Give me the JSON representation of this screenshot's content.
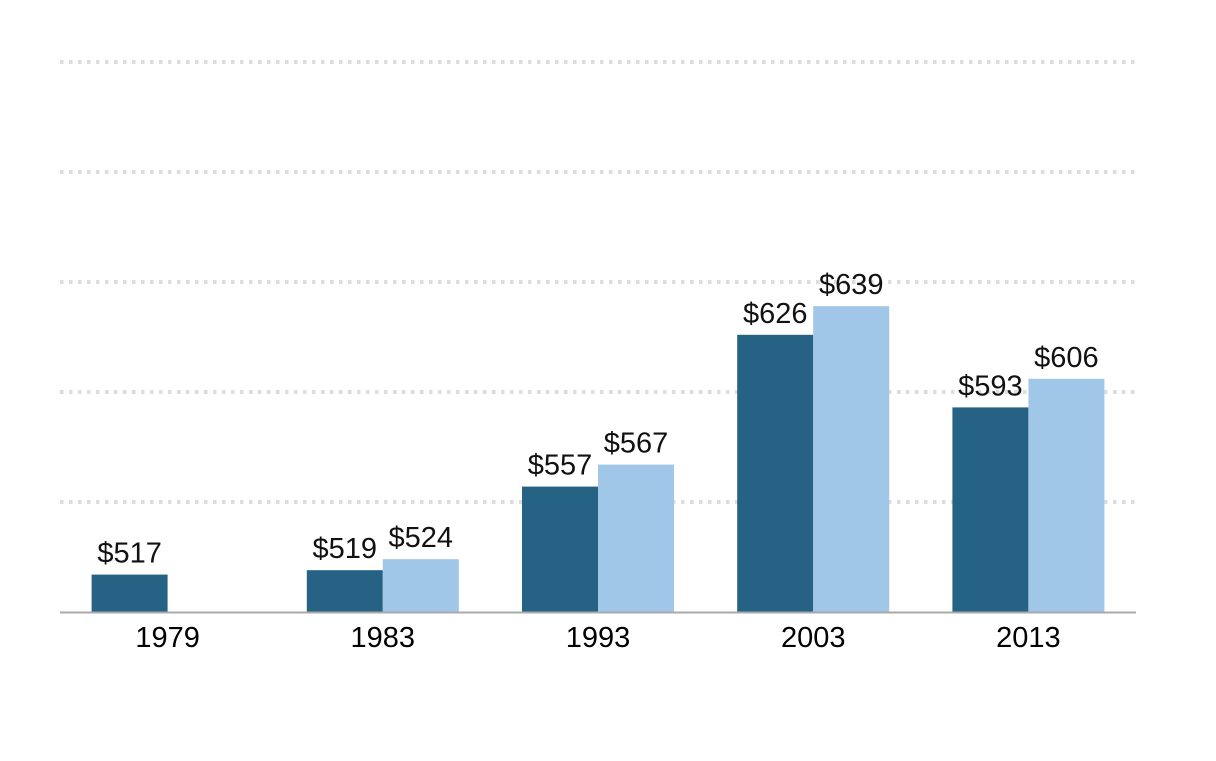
{
  "chart_data": {
    "type": "bar",
    "title": "",
    "xlabel": "",
    "ylabel": "",
    "categories": [
      "1979",
      "1983",
      "1993",
      "2003",
      "2013"
    ],
    "ylim": [
      500,
      750
    ],
    "grid_values": [
      550,
      600,
      650,
      700,
      750
    ],
    "grid": true,
    "value_prefix": "$",
    "series": [
      {
        "color": "#256283",
        "values": [
          517,
          519,
          557,
          626,
          593
        ],
        "labels": [
          "$517",
          "$519",
          "$557",
          "$626",
          "$593"
        ]
      },
      {
        "color": "#a0c6e8",
        "values": [
          null,
          524,
          567,
          639,
          606
        ],
        "labels": [
          null,
          "$524",
          "$567",
          "$639",
          "$606"
        ]
      }
    ]
  }
}
